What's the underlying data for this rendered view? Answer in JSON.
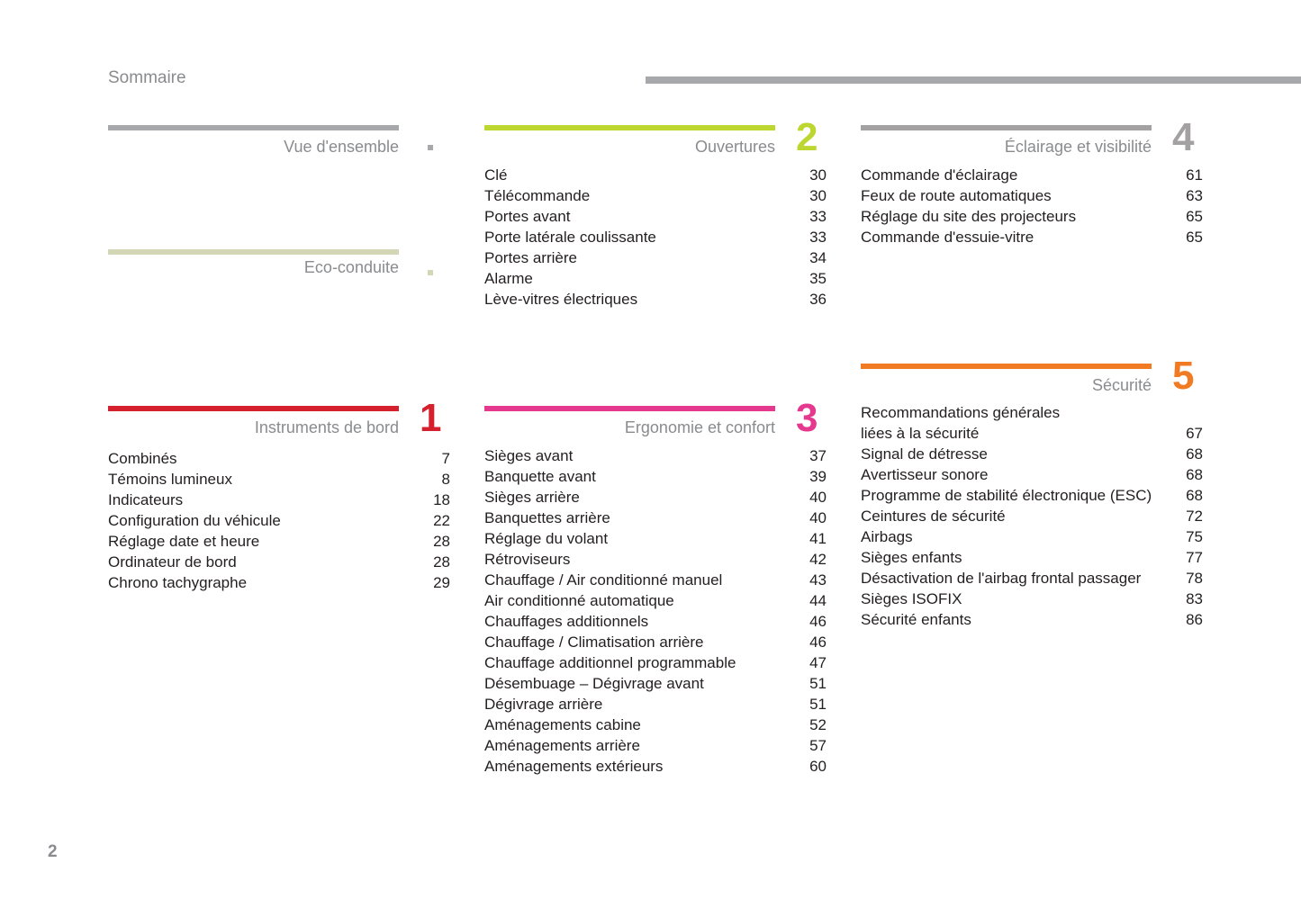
{
  "header": {
    "title": "Sommaire"
  },
  "page_number": "2",
  "colors": {
    "vue": "#a7a8ab",
    "eco": "#d3d7b5",
    "instruments": "#d5202e",
    "ouvertures": "#bed630",
    "ergonomie": "#e5398f",
    "eclairage": "#a3a1a1",
    "securite": "#f07b22"
  },
  "sections": {
    "vue": {
      "title": "Vue d'ensemble",
      "items": []
    },
    "eco": {
      "title": "Eco-conduite",
      "items": []
    },
    "instruments": {
      "title": "Instruments de bord",
      "number": "1",
      "items": [
        {
          "label": "Combinés",
          "page": "7"
        },
        {
          "label": "Témoins lumineux",
          "page": "8"
        },
        {
          "label": "Indicateurs",
          "page": "18"
        },
        {
          "label": "Configuration du véhicule",
          "page": "22"
        },
        {
          "label": "Réglage date et heure",
          "page": "28"
        },
        {
          "label": "Ordinateur de bord",
          "page": "28"
        },
        {
          "label": "Chrono tachygraphe",
          "page": "29"
        }
      ]
    },
    "ouvertures": {
      "title": "Ouvertures",
      "number": "2",
      "items": [
        {
          "label": "Clé",
          "page": "30"
        },
        {
          "label": "Télécommande",
          "page": "30"
        },
        {
          "label": "Portes avant",
          "page": "33"
        },
        {
          "label": "Porte latérale coulissante",
          "page": "33"
        },
        {
          "label": "Portes arrière",
          "page": "34"
        },
        {
          "label": "Alarme",
          "page": "35"
        },
        {
          "label": "Lève-vitres électriques",
          "page": "36"
        }
      ]
    },
    "ergonomie": {
      "title": "Ergonomie et confort",
      "number": "3",
      "items": [
        {
          "label": "Sièges avant",
          "page": "37"
        },
        {
          "label": "Banquette avant",
          "page": "39"
        },
        {
          "label": "Sièges arrière",
          "page": "40"
        },
        {
          "label": "Banquettes arrière",
          "page": "40"
        },
        {
          "label": "Réglage du volant",
          "page": "41"
        },
        {
          "label": "Rétroviseurs",
          "page": "42"
        },
        {
          "label": "Chauffage / Air conditionné manuel",
          "page": "43"
        },
        {
          "label": "Air conditionné automatique",
          "page": "44"
        },
        {
          "label": "Chauffages additionnels",
          "page": "46"
        },
        {
          "label": "Chauffage / Climatisation arrière",
          "page": "46"
        },
        {
          "label": "Chauffage additionnel programmable",
          "page": "47"
        },
        {
          "label": "Désembuage – Dégivrage avant",
          "page": "51"
        },
        {
          "label": "Dégivrage arrière",
          "page": "51"
        },
        {
          "label": "Aménagements cabine",
          "page": "52"
        },
        {
          "label": "Aménagements arrière",
          "page": "57"
        },
        {
          "label": "Aménagements extérieurs",
          "page": "60"
        }
      ]
    },
    "eclairage": {
      "title": "Éclairage et visibilité",
      "number": "4",
      "items": [
        {
          "label": "Commande d'éclairage",
          "page": "61"
        },
        {
          "label": "Feux de route automatiques",
          "page": "63"
        },
        {
          "label": "Réglage du site des projecteurs",
          "page": "65"
        },
        {
          "label": "Commande d'essuie-vitre",
          "page": "65"
        }
      ]
    },
    "securite": {
      "title": "Sécurité",
      "number": "5",
      "items": [
        {
          "label": "Recommandations générales\nliées à la sécurité",
          "page": "67"
        },
        {
          "label": "Signal de détresse",
          "page": "68"
        },
        {
          "label": "Avertisseur sonore",
          "page": "68"
        },
        {
          "label": "Programme de stabilité électronique (ESC)",
          "page": "68"
        },
        {
          "label": "Ceintures de sécurité",
          "page": "72"
        },
        {
          "label": "Airbags",
          "page": "75"
        },
        {
          "label": "Sièges enfants",
          "page": "77"
        },
        {
          "label": "Désactivation de l'airbag frontal passager",
          "page": "78"
        },
        {
          "label": "Sièges ISOFIX",
          "page": "83"
        },
        {
          "label": "Sécurité enfants",
          "page": "86"
        }
      ]
    }
  }
}
